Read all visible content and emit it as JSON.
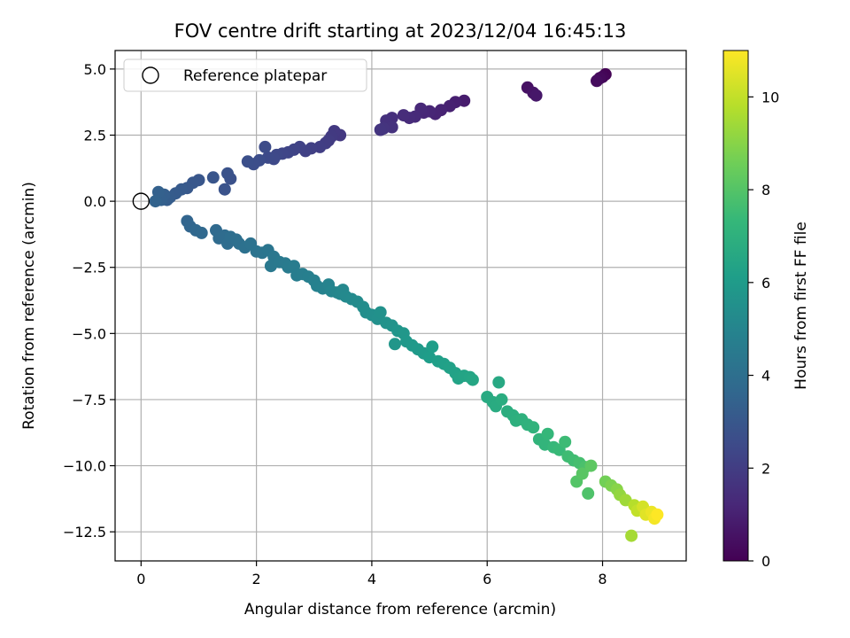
{
  "chart_data": {
    "type": "scatter",
    "title": "FOV centre drift starting at 2023/12/04 16:45:13",
    "xlabel": "Angular distance from reference (arcmin)",
    "ylabel": "Rotation from reference (arcmin)",
    "xlim": [
      -0.45,
      9.45
    ],
    "ylim": [
      -13.6,
      5.7
    ],
    "xticks": [
      0,
      2,
      4,
      6,
      8
    ],
    "yticks": [
      5.0,
      2.5,
      0.0,
      -2.5,
      -5.0,
      -7.5,
      -10.0,
      -12.5
    ],
    "xtick_labels": [
      "0",
      "2",
      "4",
      "6",
      "8"
    ],
    "ytick_labels": [
      "5.0",
      "2.5",
      "0.0",
      "−2.5",
      "−5.0",
      "−7.5",
      "−10.0",
      "−12.5"
    ],
    "grid": true,
    "legend": {
      "position": "top-left",
      "entries": [
        "Reference platepar"
      ]
    },
    "reference_point": {
      "x": 0,
      "y": 0
    },
    "colorbar": {
      "label": "Hours from first FF file",
      "range": [
        0,
        11
      ],
      "ticks": [
        0,
        2,
        4,
        6,
        8,
        10
      ],
      "tick_labels": [
        "0",
        "2",
        "4",
        "6",
        "8",
        "10"
      ],
      "colormap": "viridis"
    },
    "series": [
      {
        "points": [
          [
            8.05,
            4.8,
            0.05
          ],
          [
            8.0,
            4.7,
            0.15
          ],
          [
            7.95,
            4.65,
            0.25
          ],
          [
            7.9,
            4.55,
            0.35
          ],
          [
            6.7,
            4.3,
            0.5
          ],
          [
            6.8,
            4.1,
            0.6
          ],
          [
            6.85,
            4.0,
            0.7
          ],
          [
            5.6,
            3.8,
            0.85
          ],
          [
            5.45,
            3.75,
            0.95
          ],
          [
            5.35,
            3.6,
            1.0
          ],
          [
            5.2,
            3.45,
            1.05
          ],
          [
            5.1,
            3.3,
            1.1
          ],
          [
            5.0,
            3.4,
            1.15
          ],
          [
            4.9,
            3.35,
            1.2
          ],
          [
            4.85,
            3.5,
            1.25
          ],
          [
            4.75,
            3.2,
            1.3
          ],
          [
            4.65,
            3.15,
            1.35
          ],
          [
            4.55,
            3.25,
            1.4
          ],
          [
            4.35,
            3.15,
            1.5
          ],
          [
            4.25,
            3.05,
            1.55
          ],
          [
            4.35,
            2.8,
            1.6
          ],
          [
            4.2,
            2.75,
            1.65
          ],
          [
            4.15,
            2.7,
            1.7
          ],
          [
            3.45,
            2.5,
            1.8
          ],
          [
            3.35,
            2.65,
            1.85
          ],
          [
            3.3,
            2.45,
            1.9
          ],
          [
            3.25,
            2.3,
            1.95
          ],
          [
            3.2,
            2.2,
            2.0
          ],
          [
            3.1,
            2.05,
            2.05
          ],
          [
            2.95,
            2.0,
            2.1
          ],
          [
            2.85,
            1.9,
            2.15
          ],
          [
            2.75,
            2.05,
            2.2
          ],
          [
            2.65,
            1.95,
            2.25
          ],
          [
            2.55,
            1.85,
            2.3
          ],
          [
            2.45,
            1.8,
            2.35
          ],
          [
            2.35,
            1.75,
            2.4
          ],
          [
            2.3,
            1.6,
            2.45
          ],
          [
            2.2,
            1.65,
            2.5
          ],
          [
            2.15,
            2.05,
            2.55
          ],
          [
            2.05,
            1.55,
            2.6
          ],
          [
            1.95,
            1.4,
            2.65
          ],
          [
            1.85,
            1.5,
            2.7
          ],
          [
            1.55,
            0.85,
            2.75
          ],
          [
            1.5,
            1.05,
            2.8
          ],
          [
            1.45,
            0.45,
            2.85
          ],
          [
            1.25,
            0.9,
            2.9
          ],
          [
            1.0,
            0.8,
            2.95
          ],
          [
            0.9,
            0.7,
            3.0
          ],
          [
            0.8,
            0.5,
            3.05
          ],
          [
            0.7,
            0.45,
            3.1
          ],
          [
            0.6,
            0.3,
            3.15
          ],
          [
            0.5,
            0.15,
            3.2
          ],
          [
            0.45,
            0.05,
            3.25
          ],
          [
            0.4,
            0.25,
            3.3
          ],
          [
            0.35,
            0.05,
            3.35
          ],
          [
            0.3,
            0.35,
            3.4
          ],
          [
            0.25,
            0.0,
            3.45
          ],
          [
            0.8,
            -0.75,
            3.55
          ],
          [
            0.85,
            -0.95,
            3.6
          ],
          [
            0.95,
            -1.1,
            3.65
          ],
          [
            1.05,
            -1.2,
            3.7
          ],
          [
            1.3,
            -1.1,
            3.75
          ],
          [
            1.35,
            -1.4,
            3.8
          ],
          [
            1.45,
            -1.3,
            3.85
          ],
          [
            1.5,
            -1.6,
            3.9
          ],
          [
            1.55,
            -1.35,
            3.95
          ],
          [
            1.65,
            -1.45,
            4.0
          ],
          [
            1.7,
            -1.6,
            4.05
          ],
          [
            1.8,
            -1.75,
            4.1
          ],
          [
            1.9,
            -1.6,
            4.15
          ],
          [
            2.0,
            -1.9,
            4.2
          ],
          [
            2.1,
            -1.95,
            4.25
          ],
          [
            2.2,
            -1.85,
            4.3
          ],
          [
            2.3,
            -2.1,
            4.35
          ],
          [
            2.25,
            -2.45,
            4.4
          ],
          [
            2.4,
            -2.3,
            4.45
          ],
          [
            2.5,
            -2.35,
            4.5
          ],
          [
            2.55,
            -2.5,
            4.55
          ],
          [
            2.65,
            -2.45,
            4.6
          ],
          [
            2.7,
            -2.8,
            4.65
          ],
          [
            2.8,
            -2.75,
            4.7
          ],
          [
            2.9,
            -2.85,
            4.75
          ],
          [
            3.0,
            -3.0,
            4.8
          ],
          [
            3.05,
            -3.2,
            4.85
          ],
          [
            3.15,
            -3.3,
            4.9
          ],
          [
            3.25,
            -3.15,
            4.95
          ],
          [
            3.3,
            -3.4,
            5.0
          ],
          [
            3.4,
            -3.45,
            5.05
          ],
          [
            3.45,
            -3.5,
            5.1
          ],
          [
            3.5,
            -3.35,
            5.15
          ],
          [
            3.55,
            -3.6,
            5.2
          ],
          [
            3.65,
            -3.7,
            5.25
          ],
          [
            3.75,
            -3.8,
            5.3
          ],
          [
            3.85,
            -4.0,
            5.35
          ],
          [
            3.9,
            -4.2,
            5.4
          ],
          [
            4.0,
            -4.3,
            5.45
          ],
          [
            4.1,
            -4.45,
            5.5
          ],
          [
            4.15,
            -4.2,
            5.55
          ],
          [
            4.25,
            -4.6,
            5.6
          ],
          [
            4.35,
            -4.7,
            5.65
          ],
          [
            4.45,
            -4.9,
            5.7
          ],
          [
            4.4,
            -5.4,
            5.75
          ],
          [
            4.55,
            -5.0,
            5.8
          ],
          [
            4.6,
            -5.3,
            5.85
          ],
          [
            4.7,
            -5.45,
            5.9
          ],
          [
            4.8,
            -5.6,
            5.95
          ],
          [
            4.9,
            -5.75,
            6.0
          ],
          [
            5.0,
            -5.9,
            6.05
          ],
          [
            5.05,
            -5.5,
            6.1
          ],
          [
            5.15,
            -6.05,
            6.15
          ],
          [
            5.25,
            -6.15,
            6.2
          ],
          [
            5.35,
            -6.3,
            6.25
          ],
          [
            5.45,
            -6.5,
            6.3
          ],
          [
            5.5,
            -6.7,
            6.35
          ],
          [
            5.6,
            -6.6,
            6.4
          ],
          [
            5.7,
            -6.65,
            6.45
          ],
          [
            5.75,
            -6.75,
            6.5
          ],
          [
            6.2,
            -6.85,
            6.6
          ],
          [
            6.0,
            -7.4,
            6.65
          ],
          [
            6.1,
            -7.6,
            6.7
          ],
          [
            6.15,
            -7.75,
            6.75
          ],
          [
            6.25,
            -7.5,
            6.8
          ],
          [
            6.35,
            -7.95,
            6.85
          ],
          [
            6.45,
            -8.1,
            6.9
          ],
          [
            6.5,
            -8.3,
            6.95
          ],
          [
            6.6,
            -8.25,
            7.0
          ],
          [
            6.7,
            -8.45,
            7.05
          ],
          [
            6.8,
            -8.55,
            7.1
          ],
          [
            6.9,
            -9.0,
            7.15
          ],
          [
            7.0,
            -9.2,
            7.2
          ],
          [
            7.05,
            -8.8,
            7.3
          ],
          [
            7.15,
            -9.3,
            7.35
          ],
          [
            7.25,
            -9.4,
            7.4
          ],
          [
            7.35,
            -9.1,
            7.5
          ],
          [
            7.4,
            -9.65,
            7.55
          ],
          [
            7.5,
            -9.8,
            7.6
          ],
          [
            7.6,
            -9.9,
            7.7
          ],
          [
            7.7,
            -10.05,
            7.8
          ],
          [
            7.75,
            -11.05,
            7.9
          ],
          [
            7.55,
            -10.6,
            8.0
          ],
          [
            7.65,
            -10.3,
            8.1
          ],
          [
            7.8,
            -10.0,
            8.2
          ],
          [
            8.05,
            -10.6,
            8.6
          ],
          [
            8.15,
            -10.75,
            8.8
          ],
          [
            8.25,
            -10.9,
            9.0
          ],
          [
            8.3,
            -11.1,
            9.2
          ],
          [
            8.4,
            -11.3,
            9.4
          ],
          [
            8.5,
            -12.65,
            9.5
          ],
          [
            8.55,
            -11.5,
            9.8
          ],
          [
            8.6,
            -11.7,
            10.0
          ],
          [
            8.7,
            -11.55,
            10.3
          ],
          [
            8.75,
            -11.85,
            10.5
          ],
          [
            8.85,
            -11.75,
            10.7
          ],
          [
            8.9,
            -12.0,
            10.85
          ],
          [
            8.95,
            -11.85,
            11.0
          ]
        ]
      }
    ]
  }
}
